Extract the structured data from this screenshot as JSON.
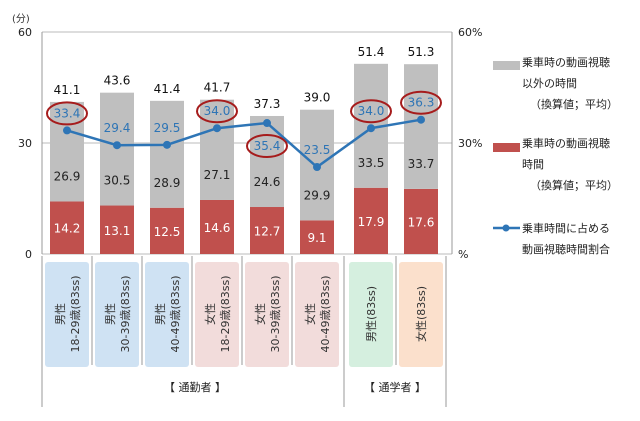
{
  "chart_data": {
    "type": "bar",
    "stacked": true,
    "unit_left": "(分)",
    "unit_right": "%",
    "ylim": [
      0,
      60
    ],
    "y2lim": [
      0,
      60
    ],
    "yticks": [
      "0",
      "30",
      "60"
    ],
    "y2ticks": [
      "%",
      "30%",
      "60%"
    ],
    "categories": [
      {
        "l1": "男性",
        "l2": "18-29歳(83ss)",
        "bg": "#cfe2f3"
      },
      {
        "l1": "男性",
        "l2": "30-39歳(83ss)",
        "bg": "#cfe2f3"
      },
      {
        "l1": "男性",
        "l2": "40-49歳(83ss)",
        "bg": "#cfe2f3"
      },
      {
        "l1": "女性",
        "l2": "18-29歳(83ss)",
        "bg": "#f2dcdb"
      },
      {
        "l1": "女性",
        "l2": "30-39歳(83ss)",
        "bg": "#f2dcdb"
      },
      {
        "l1": "女性",
        "l2": "40-49歳(83ss)",
        "bg": "#f2dcdb"
      },
      {
        "l1": "男性(83ss)",
        "l2": "",
        "bg": "#d5efdf"
      },
      {
        "l1": "女性(83ss)",
        "l2": "",
        "bg": "#fbe0cc"
      }
    ],
    "groups": [
      {
        "label": "【 通勤者 】",
        "span": 6
      },
      {
        "label": "【 通学者 】",
        "span": 2
      }
    ],
    "series": [
      {
        "name": "乗車時の動画視聴時間（換算値；平均）",
        "color": "#c0504d",
        "values": [
          14.2,
          13.1,
          12.5,
          14.6,
          12.7,
          9.1,
          17.9,
          17.6
        ]
      },
      {
        "name": "乗車時の動画視聴以外の時間（換算値；平均）",
        "color": "#bfbfbf",
        "values": [
          26.9,
          30.5,
          28.9,
          27.1,
          24.6,
          29.9,
          33.5,
          33.7
        ]
      }
    ],
    "totals": [
      41.1,
      43.6,
      41.4,
      41.7,
      37.3,
      39.0,
      51.4,
      51.3
    ],
    "line": {
      "name": "乗車時間に占める動画視聴時間割合",
      "color": "#2e75b6",
      "values": [
        33.4,
        29.4,
        29.5,
        34.0,
        35.4,
        23.5,
        34.0,
        36.3
      ],
      "circled": [
        true,
        false,
        false,
        true,
        true,
        false,
        true,
        true
      ]
    }
  },
  "legend": {
    "gray": [
      "乗車時の動画視聴",
      "以外の時間",
      "（換算値；平均）"
    ],
    "red": [
      "乗車時の動画視聴",
      "時間",
      "（換算値；平均）"
    ],
    "line": [
      "乗車時間に占める",
      "動画視聴時間割合"
    ]
  }
}
